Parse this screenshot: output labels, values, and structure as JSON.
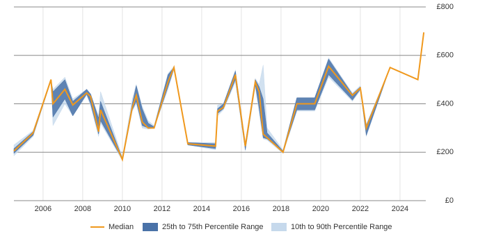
{
  "chart_data": {
    "type": "range-line",
    "x": [
      2004.53,
      2005.5,
      2006.4,
      2006.5,
      2007.1,
      2007.5,
      2008.2,
      2008.4,
      2008.8,
      2008.9,
      2010.0,
      2010.5,
      2010.7,
      2011.0,
      2011.3,
      2011.6,
      2012.3,
      2012.6,
      2013.3,
      2014.7,
      2014.8,
      2015.1,
      2015.7,
      2016.2,
      2016.7,
      2016.9,
      2017.1,
      2017.3,
      2018.1,
      2018.8,
      2019.7,
      2020.4,
      2021.6,
      2022.0,
      2022.3,
      2023.5,
      2024.9,
      2025.2
    ],
    "series": [
      {
        "name": "Median",
        "color": "#f0981c",
        "values": [
          205,
          280,
          500,
          400,
          460,
          395,
          445,
          430,
          285,
          375,
          170,
          385,
          435,
          325,
          300,
          300,
          490,
          550,
          235,
          225,
          370,
          385,
          520,
          225,
          490,
          450,
          275,
          260,
          200,
          400,
          400,
          555,
          435,
          465,
          300,
          550,
          500,
          695
        ]
      },
      {
        "name": "25th to 75th Percentile Range",
        "color": "#4a72a8",
        "low": [
          195,
          270,
          495,
          345,
          420,
          350,
          440,
          400,
          275,
          330,
          170,
          375,
          410,
          310,
          300,
          300,
          470,
          545,
          230,
          215,
          360,
          380,
          500,
          210,
          480,
          380,
          260,
          255,
          200,
          375,
          375,
          520,
          415,
          460,
          270,
          550,
          500,
          695
        ],
        "high": [
          215,
          285,
          500,
          450,
          500,
          410,
          460,
          440,
          340,
          410,
          175,
          400,
          475,
          380,
          320,
          305,
          520,
          550,
          240,
          235,
          380,
          400,
          535,
          230,
          500,
          470,
          420,
          280,
          205,
          425,
          425,
          585,
          440,
          470,
          310,
          550,
          500,
          695
        ]
      },
      {
        "name": "10th to 90th Percentile Range",
        "color": "#c6d9ec",
        "low": [
          185,
          265,
          495,
          310,
          400,
          350,
          435,
          390,
          265,
          320,
          165,
          370,
          400,
          300,
          295,
          300,
          460,
          540,
          230,
          210,
          350,
          375,
          490,
          205,
          470,
          360,
          255,
          250,
          195,
          370,
          370,
          510,
          410,
          455,
          265,
          550,
          500,
          695
        ],
        "high": [
          230,
          290,
          500,
          460,
          510,
          420,
          460,
          440,
          350,
          450,
          180,
          420,
          480,
          390,
          330,
          310,
          525,
          555,
          240,
          240,
          395,
          400,
          540,
          240,
          505,
          480,
          560,
          300,
          210,
          425,
          425,
          590,
          445,
          475,
          315,
          550,
          500,
          695
        ]
      }
    ],
    "xlim": [
      2004.53,
      2025.3
    ],
    "xticks": [
      2006,
      2008,
      2010,
      2012,
      2014,
      2016,
      2018,
      2020,
      2022,
      2024
    ],
    "ylim": [
      0,
      800
    ],
    "yticks": [
      {
        "value": 0,
        "label": "£0"
      },
      {
        "value": 200,
        "label": "£200"
      },
      {
        "value": 400,
        "label": "£400"
      },
      {
        "value": 600,
        "label": "£600"
      },
      {
        "value": 800,
        "label": "£800"
      }
    ],
    "grid": true
  }
}
